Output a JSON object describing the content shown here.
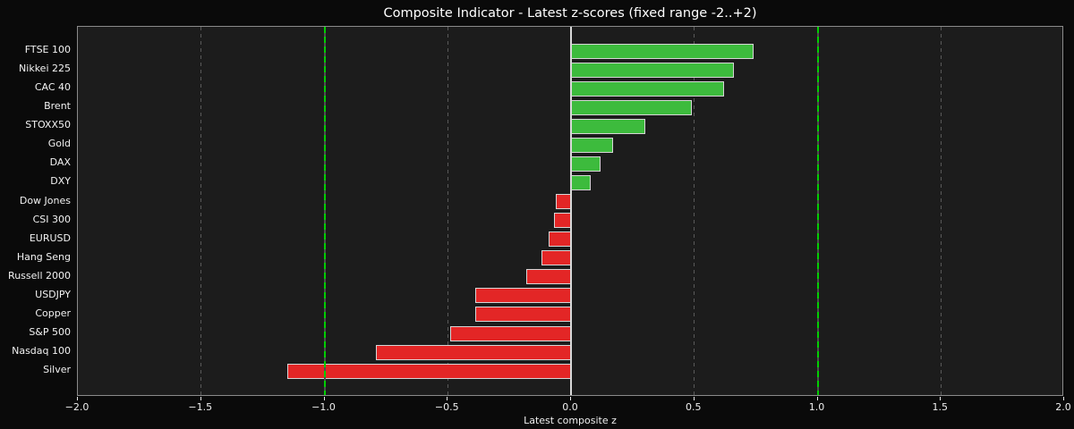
{
  "chart_data": {
    "type": "bar",
    "orientation": "horizontal",
    "title": "Composite Indicator - Latest z-scores (fixed range -2..+2)",
    "xlabel": "Latest composite z",
    "categories": [
      "FTSE 100",
      "Nikkei 225",
      "CAC 40",
      "Brent",
      "STOXX50",
      "Gold",
      "DAX",
      "DXY",
      "Dow Jones",
      "CSI 300",
      "EURUSD",
      "Hang Seng",
      "Russell 2000",
      "USDJPY",
      "Copper",
      "S&P 500",
      "Nasdaq 100",
      "Silver"
    ],
    "values": [
      0.74,
      0.66,
      0.62,
      0.49,
      0.3,
      0.17,
      0.12,
      0.08,
      -0.06,
      -0.07,
      -0.09,
      -0.12,
      -0.18,
      -0.39,
      -0.39,
      -0.49,
      -0.79,
      -1.15
    ],
    "xlim": [
      -2.0,
      2.0
    ],
    "xtick_values": [
      -2.0,
      -1.5,
      -1.0,
      -0.5,
      0.0,
      0.5,
      1.0,
      1.5,
      2.0
    ],
    "xtick_labels": [
      "−2.0",
      "−1.5",
      "−1.0",
      "−0.5",
      "0.0",
      "0.5",
      "1.0",
      "1.5",
      "2.0"
    ],
    "grid": {
      "axis": "x",
      "style": "dashed",
      "color": "#5a5a5a",
      "step": 0.5
    },
    "reference_lines": [
      {
        "x": -1.0,
        "style": "dashed",
        "color": "#00cf00"
      },
      {
        "x": 1.0,
        "style": "dashed",
        "color": "#00cf00"
      },
      {
        "x": 0.0,
        "style": "solid",
        "color": "#d9d9d9"
      }
    ],
    "legend": null,
    "colors": {
      "positive_bar": "#3dbb3d",
      "negative_bar": "#e32626",
      "bar_edge": "#d6d6d6",
      "figure_background": "#0a0a0a",
      "axes_background": "#1c1c1c",
      "spine": "#8a8a8a",
      "grid": "#5a5a5a",
      "zero_line": "#d9d9d9",
      "reference_line": "#00cf00",
      "text": "#f2f2f2"
    }
  }
}
